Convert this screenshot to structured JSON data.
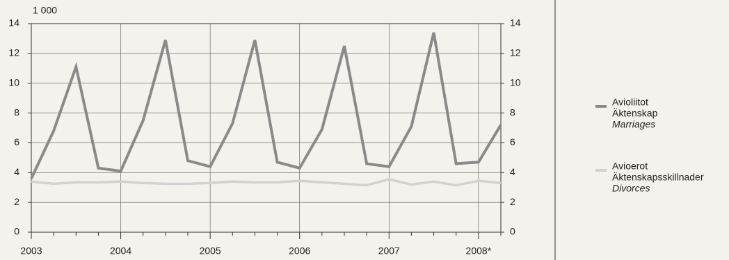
{
  "chart_data": {
    "type": "line",
    "unit_label": "1 000",
    "categories": [
      "2003",
      null,
      null,
      null,
      "2004",
      null,
      null,
      null,
      "2005",
      null,
      null,
      null,
      "2006",
      null,
      null,
      null,
      "2007",
      null,
      null,
      null,
      "2008*",
      null
    ],
    "series": [
      {
        "name": "Avioliitot",
        "name_sv": "Äktenskap",
        "name_en": "Marriages",
        "color": "#8a8a8a",
        "values": [
          3.6,
          6.8,
          11.1,
          4.3,
          4.1,
          7.5,
          12.9,
          4.8,
          4.4,
          7.3,
          12.9,
          4.7,
          4.3,
          6.9,
          12.5,
          4.6,
          4.4,
          7.1,
          13.4,
          4.6,
          4.7,
          7.2
        ]
      },
      {
        "name": "Avioerot",
        "name_sv": "Äktenskapsskillnader",
        "name_en": "Divorces",
        "color": "#d2d2d2",
        "values": [
          3.4,
          3.25,
          3.35,
          3.35,
          3.4,
          3.3,
          3.25,
          3.25,
          3.3,
          3.4,
          3.35,
          3.35,
          3.45,
          3.35,
          3.25,
          3.15,
          3.55,
          3.2,
          3.4,
          3.15,
          3.45,
          3.3
        ]
      }
    ],
    "ylim": [
      0,
      14
    ],
    "yticks": [
      0,
      2,
      4,
      6,
      8,
      10,
      12,
      14
    ],
    "y2lim": [
      0,
      14
    ],
    "y2ticks": [
      0,
      2,
      4,
      6,
      8,
      10,
      12,
      14
    ],
    "grid": true
  }
}
